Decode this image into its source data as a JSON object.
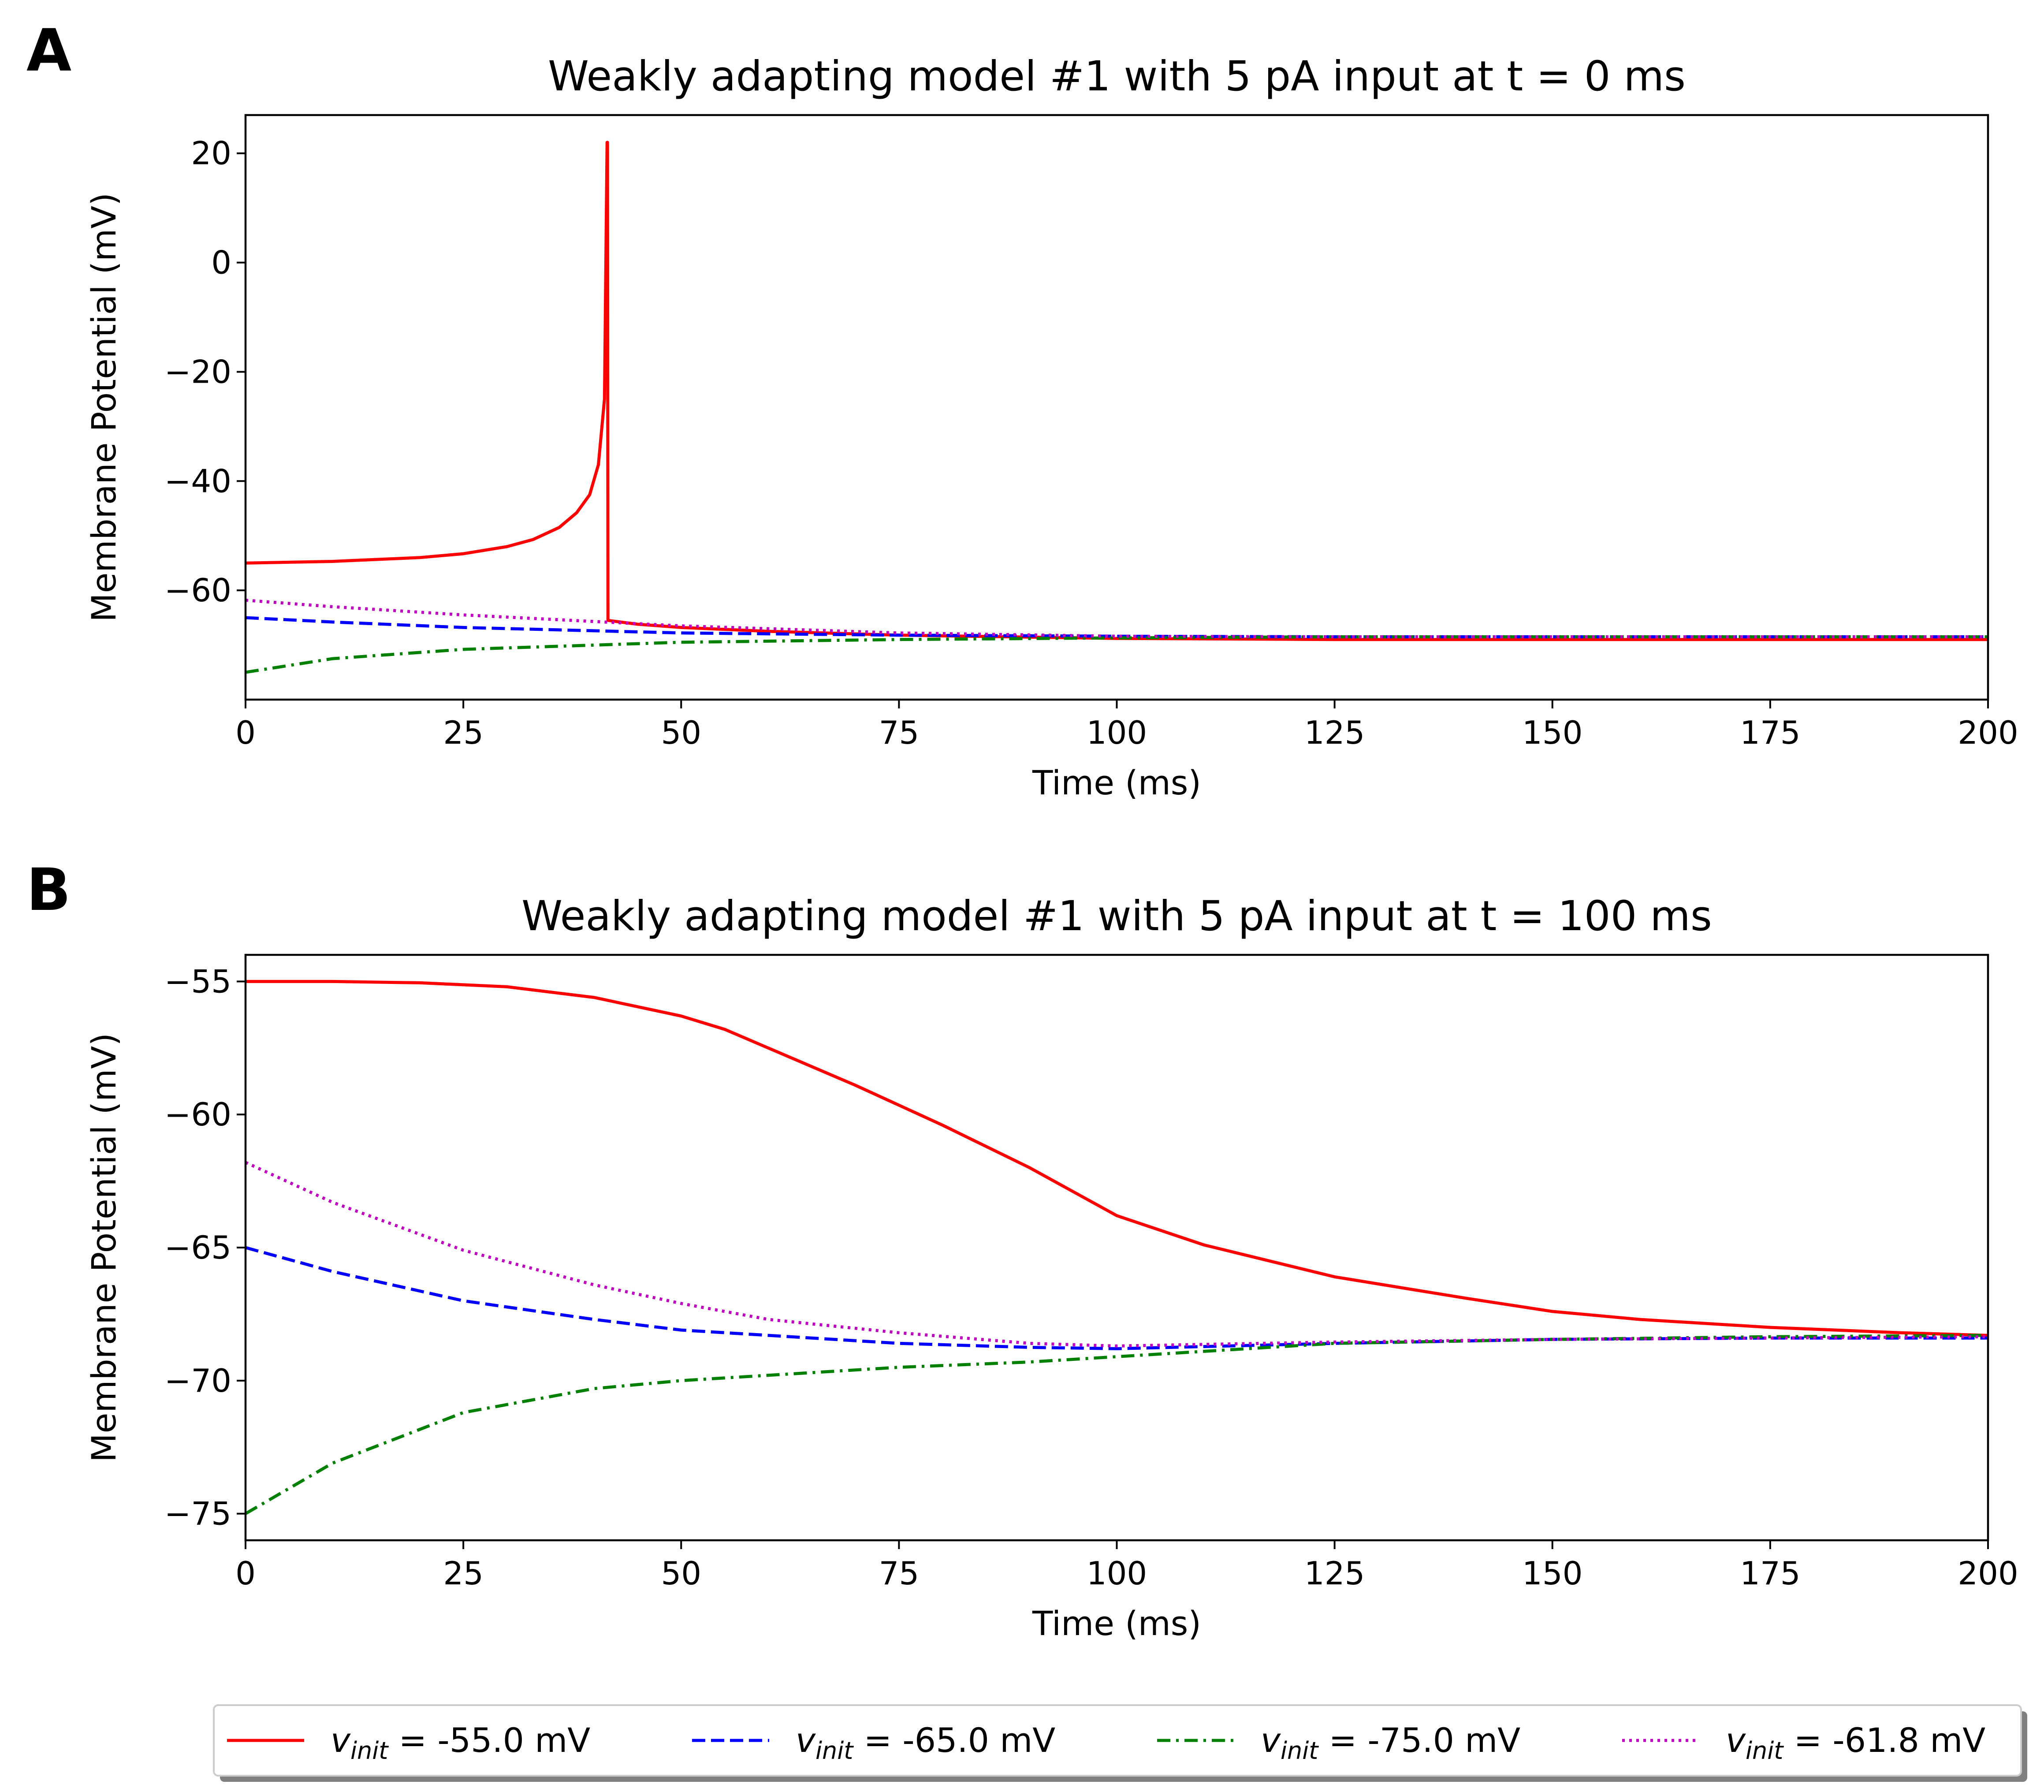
{
  "chart_data": [
    {
      "panel_label": "A",
      "type": "line",
      "title": "Weakly adapting model #1 with 5 pA input at t = 0 ms",
      "xlabel": "Time (ms)",
      "ylabel": "Membrane Potential (mV)",
      "xlim": [
        0,
        200
      ],
      "ylim": [
        -80,
        27
      ],
      "xticks": [
        0,
        25,
        50,
        75,
        100,
        125,
        150,
        175,
        200
      ],
      "yticks": [
        20,
        0,
        -20,
        -40,
        -60
      ],
      "xtick_labels": [
        "0",
        "25",
        "50",
        "75",
        "100",
        "125",
        "150",
        "175",
        "200"
      ],
      "ytick_labels": [
        "20",
        "0",
        "−20",
        "−40",
        "−60"
      ],
      "grid": false,
      "series": [
        {
          "name": "v_init = -55.0 mV",
          "color": "#ff0000",
          "style": "solid",
          "x": [
            0,
            10,
            20,
            25,
            30,
            33,
            36,
            38,
            39.5,
            40.5,
            41.2,
            41.5,
            41.55,
            41.6,
            45,
            50,
            60,
            75,
            100,
            125,
            150,
            175,
            200
          ],
          "y": [
            -55.0,
            -54.7,
            -54.0,
            -53.3,
            -52.0,
            -50.7,
            -48.5,
            -45.8,
            -42.5,
            -37.0,
            -25.0,
            22.0,
            22.0,
            -65.5,
            -66.2,
            -66.8,
            -67.5,
            -68.2,
            -68.8,
            -69.0,
            -69.0,
            -69.0,
            -69.0
          ]
        },
        {
          "name": "v_init = -65.0 mV",
          "color": "#0000ff",
          "style": "dashed",
          "x": [
            0,
            10,
            25,
            50,
            75,
            100,
            125,
            150,
            175,
            200
          ],
          "y": [
            -65.0,
            -65.8,
            -66.8,
            -67.8,
            -68.2,
            -68.4,
            -68.5,
            -68.5,
            -68.5,
            -68.5
          ]
        },
        {
          "name": "v_init = -75.0 mV",
          "color": "#008000",
          "style": "dashdot",
          "x": [
            0,
            10,
            25,
            50,
            75,
            100,
            125,
            150,
            175,
            200
          ],
          "y": [
            -75.0,
            -72.5,
            -70.8,
            -69.5,
            -69.0,
            -68.7,
            -68.5,
            -68.5,
            -68.5,
            -68.5
          ]
        },
        {
          "name": "v_init = -61.8 mV",
          "color": "#c000c0",
          "style": "dotted",
          "x": [
            0,
            10,
            25,
            50,
            75,
            100,
            125,
            150,
            175,
            200
          ],
          "y": [
            -61.8,
            -63.0,
            -64.5,
            -66.5,
            -67.8,
            -68.4,
            -68.5,
            -68.5,
            -68.5,
            -68.5
          ]
        }
      ]
    },
    {
      "panel_label": "B",
      "type": "line",
      "title": "Weakly adapting model #1 with 5 pA input at t = 100 ms",
      "xlabel": "Time (ms)",
      "ylabel": "Membrane Potential (mV)",
      "xlim": [
        0,
        200
      ],
      "ylim": [
        -76,
        -54
      ],
      "xticks": [
        0,
        25,
        50,
        75,
        100,
        125,
        150,
        175,
        200
      ],
      "yticks": [
        -55,
        -60,
        -65,
        -70,
        -75
      ],
      "xtick_labels": [
        "0",
        "25",
        "50",
        "75",
        "100",
        "125",
        "150",
        "175",
        "200"
      ],
      "ytick_labels": [
        "−55",
        "−60",
        "−65",
        "−70",
        "−75"
      ],
      "grid": false,
      "series": [
        {
          "name": "v_init = -55.0 mV",
          "color": "#ff0000",
          "style": "solid",
          "x": [
            0,
            10,
            20,
            30,
            40,
            50,
            55,
            60,
            70,
            80,
            90,
            100,
            110,
            125,
            140,
            150,
            160,
            175,
            190,
            200
          ],
          "y": [
            -55.0,
            -55.0,
            -55.05,
            -55.2,
            -55.6,
            -56.3,
            -56.8,
            -57.5,
            -58.9,
            -60.4,
            -62.0,
            -63.8,
            -64.9,
            -66.1,
            -66.9,
            -67.4,
            -67.7,
            -68.0,
            -68.2,
            -68.3
          ]
        },
        {
          "name": "v_init = -65.0 mV",
          "color": "#0000ff",
          "style": "dashed",
          "x": [
            0,
            10,
            25,
            40,
            50,
            75,
            90,
            100,
            125,
            150,
            175,
            200
          ],
          "y": [
            -65.0,
            -65.9,
            -67.0,
            -67.7,
            -68.1,
            -68.6,
            -68.75,
            -68.8,
            -68.6,
            -68.45,
            -68.4,
            -68.4
          ]
        },
        {
          "name": "v_init = -75.0 mV",
          "color": "#008000",
          "style": "dashdot",
          "x": [
            0,
            10,
            25,
            40,
            50,
            75,
            90,
            100,
            125,
            150,
            175,
            200
          ],
          "y": [
            -75.0,
            -73.1,
            -71.2,
            -70.3,
            -70.0,
            -69.5,
            -69.3,
            -69.1,
            -68.6,
            -68.45,
            -68.35,
            -68.3
          ]
        },
        {
          "name": "v_init = -61.8 mV",
          "color": "#c000c0",
          "style": "dotted",
          "x": [
            0,
            10,
            25,
            40,
            50,
            60,
            75,
            90,
            100,
            125,
            150,
            175,
            200
          ],
          "y": [
            -61.8,
            -63.3,
            -65.1,
            -66.4,
            -67.1,
            -67.7,
            -68.2,
            -68.6,
            -68.7,
            -68.55,
            -68.45,
            -68.4,
            -68.35
          ]
        }
      ]
    }
  ],
  "legend": {
    "placement": "bottom-center",
    "entries": [
      {
        "symbol": "v",
        "subscript": "init",
        "text": " = -55.0 mV",
        "color": "#ff0000",
        "style": "solid"
      },
      {
        "symbol": "v",
        "subscript": "init",
        "text": " = -65.0 mV",
        "color": "#0000ff",
        "style": "dashed"
      },
      {
        "symbol": "v",
        "subscript": "init",
        "text": " = -75.0 mV",
        "color": "#008000",
        "style": "dashdot"
      },
      {
        "symbol": "v",
        "subscript": "init",
        "text": " = -61.8 mV",
        "color": "#c000c0",
        "style": "dotted"
      }
    ]
  }
}
